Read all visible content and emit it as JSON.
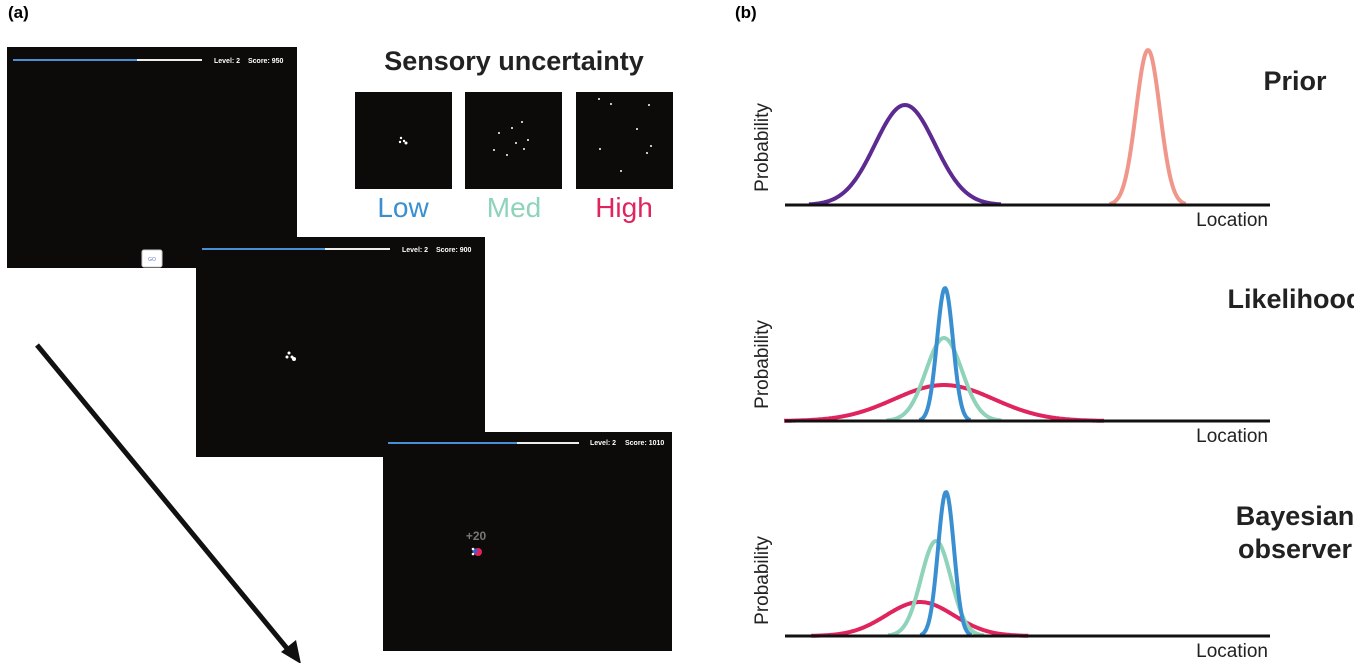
{
  "panel_a": {
    "label": "(a)",
    "screens": [
      {
        "level": "Level: 2",
        "score": "Score: 950",
        "button": "GO"
      },
      {
        "level": "Level: 2",
        "score": "Score: 900"
      },
      {
        "level": "Level: 2",
        "score": "Score: 1010",
        "feedback": "+20"
      }
    ],
    "uncertainty": {
      "title": "Sensory uncertainty",
      "levels": [
        "Low",
        "Med",
        "High"
      ]
    }
  },
  "panel_b": {
    "label": "(b)",
    "plots": [
      {
        "title": [
          "Prior"
        ],
        "y_label": "Probability",
        "x_label": "Location"
      },
      {
        "title": [
          "Likelihood"
        ],
        "y_label": "Probability",
        "x_label": "Location"
      },
      {
        "title": [
          "Bayesian",
          "observer"
        ],
        "y_label": "Probability",
        "x_label": "Location"
      }
    ]
  }
}
